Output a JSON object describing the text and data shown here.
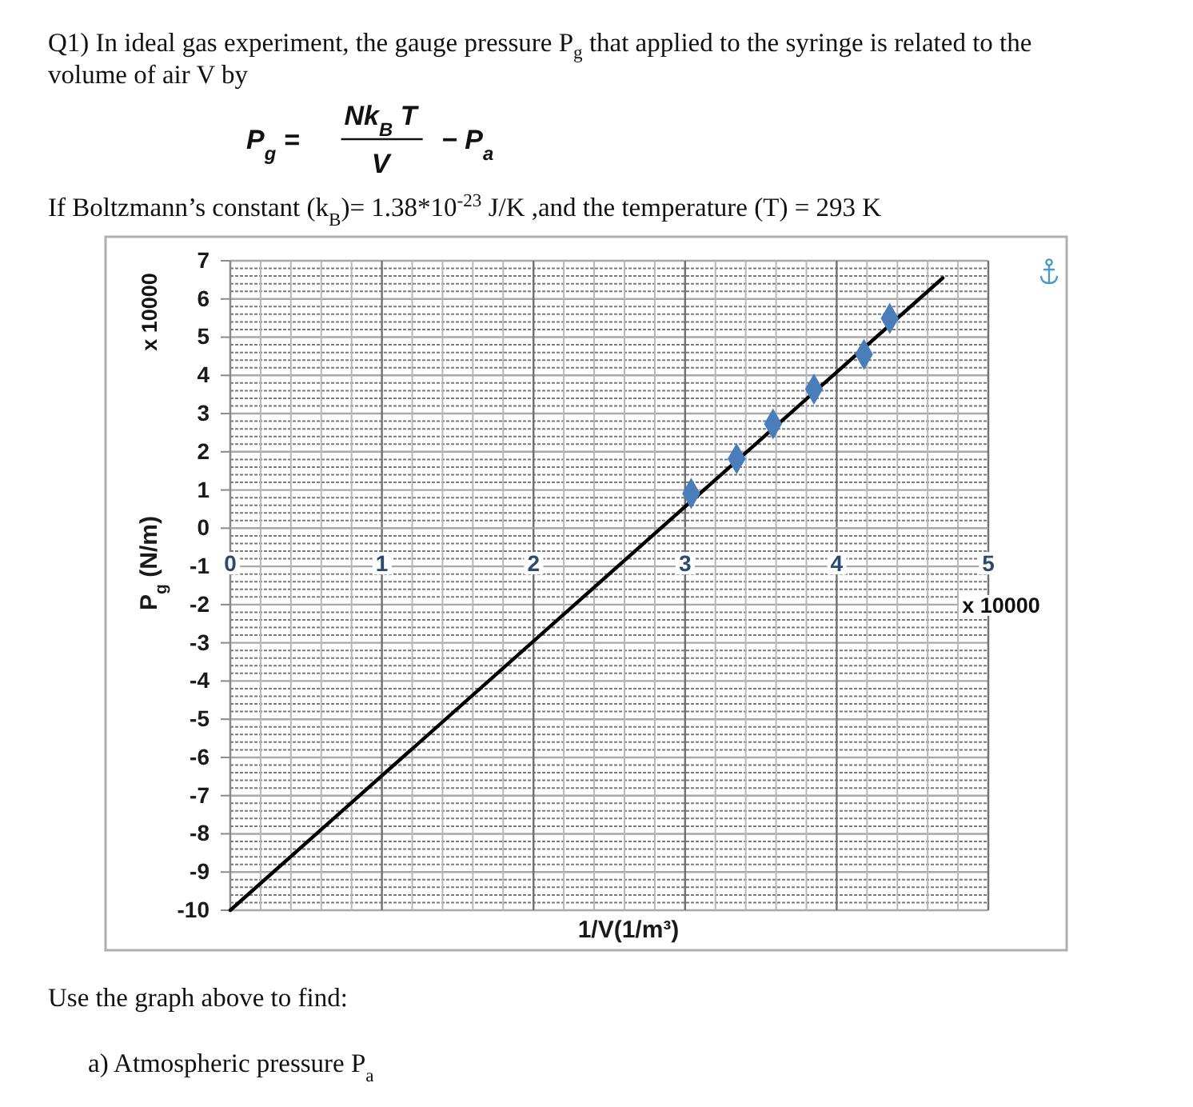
{
  "chart_data": {
    "type": "scatter",
    "title": "Q1) In ideal gas experiment, the gauge pressure P$_{g}$ that applied to the syringe is related to the volume of air V by",
    "xlabel": "1/V(1/m³)",
    "ylabel": "P$_{g}$ (N/m)",
    "annotations": [
      "x 10000",
      "x 10000",
      "P$_{g}$ =",
      "Nk$_{B}$ T",
      "V",
      "− P$_{a}$",
      "If Boltzmann’s constant (k$_{B}$)= 1.38*10$^{-23}$ J/K ,and the temperature (T) = 293 K",
      "Use the graph above to find:",
      "a) Atmospheric pressure P$_{a}$"
    ],
    "xlim": [
      0,
      5
    ],
    "ylim": [
      -10,
      7
    ],
    "xticks": [
      0,
      1,
      2,
      3,
      4,
      5
    ],
    "yticks": [
      -10,
      -9,
      -8,
      -7,
      -6,
      -5,
      -4,
      -3,
      -2,
      -1,
      0,
      1,
      2,
      3,
      4,
      5,
      6,
      7
    ],
    "grid": true,
    "series": [
      {
        "color": "#4a7ebb",
        "marker": "diamond",
        "x": [
          3.04,
          3.34,
          3.58,
          3.85,
          4.18,
          4.35
        ],
        "values": [
          0.91,
          1.82,
          2.73,
          3.64,
          4.55,
          5.49
        ]
      },
      {
        "type": "line",
        "color": "#000000",
        "x": [
          0,
          4.7
        ],
        "values": [
          -10,
          6.55
        ]
      }
    ]
  }
}
